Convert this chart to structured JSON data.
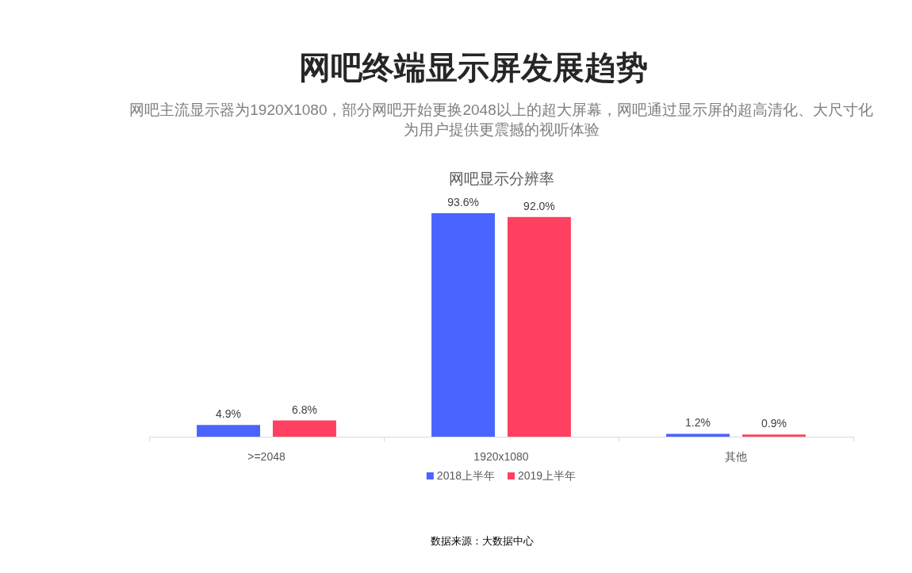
{
  "chart_data": {
    "type": "bar",
    "title": "网吧终端显示屏发展趋势",
    "subtitle": "网吧主流显示器为1920X1080，部分网吧开始更换2048以上的超大屏幕，网吧通过显示屏的超高清化、大尺寸化为用户提供更震撼的视听体验",
    "annotations": [
      "网吧显示分辨率",
      "数据来源：大数据中心"
    ],
    "categories": [
      ">=2048",
      "1920x1080",
      "其他"
    ],
    "series": [
      {
        "name": "2018上半年",
        "color": "#4a64ff",
        "values": [
          4.9,
          93.6,
          1.2
        ],
        "value_labels": [
          "4.9%",
          "93.6%",
          "1.2%"
        ]
      },
      {
        "name": "2019上半年",
        "color": "#ff4060",
        "values": [
          6.8,
          92.0,
          0.9
        ],
        "value_labels": [
          "6.8%",
          "92.0%",
          "0.9%"
        ]
      }
    ],
    "legend": "bottom"
  }
}
